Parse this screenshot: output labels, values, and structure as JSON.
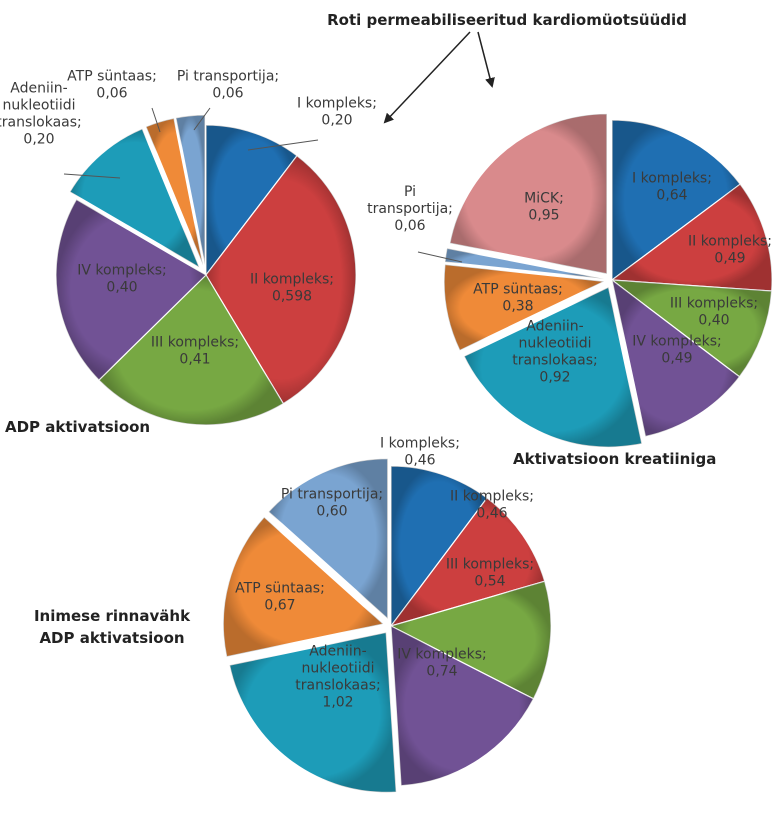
{
  "header": {
    "title": "Roti permeabiliseeritud kardiomüotsüüdid"
  },
  "chart_data": [
    {
      "type": "pie",
      "title": "ADP aktivatsioon",
      "categories": [
        "I kompleks",
        "II kompleks",
        "III kompleks",
        "IV kompleks",
        "Adeniin-nukleotiidi translokaas",
        "ATP süntaas",
        "Pi transportija"
      ],
      "values": [
        0.2,
        0.598,
        0.41,
        0.4,
        0.2,
        0.06,
        0.06
      ],
      "labels": [
        [
          "I kompleks;",
          "0,20"
        ],
        [
          "II kompleks;",
          "0,598"
        ],
        [
          "III kompleks;",
          "0,41"
        ],
        [
          "IV kompleks;",
          "0,40"
        ],
        [
          "Adeniin-",
          "nukleotiidi",
          "translokaas;",
          "0,20"
        ],
        [
          "ATP süntaas;",
          "0,06"
        ],
        [
          "Pi transportija;",
          "0,06"
        ]
      ],
      "colors": [
        "#1f6fb2",
        "#cc3f3f",
        "#77a843",
        "#715295",
        "#1d9cb8",
        "#ef8a38",
        "#7aa4d1"
      ]
    },
    {
      "type": "pie",
      "title": "Aktivatsioon kreatiiniga",
      "categories": [
        "I kompleks",
        "II kompleks",
        "III kompleks",
        "IV kompleks",
        "Adeniin-nukleotiidi translokaas",
        "ATP süntaas",
        "Pi transportija",
        "MiCK"
      ],
      "values": [
        0.64,
        0.49,
        0.4,
        0.49,
        0.92,
        0.38,
        0.06,
        0.95
      ],
      "labels": [
        [
          "I kompleks;",
          "0,64"
        ],
        [
          "II kompleks;",
          "0,49"
        ],
        [
          "III kompleks;",
          "0,40"
        ],
        [
          "IV kompleks;",
          "0,49"
        ],
        [
          "Adeniin-",
          "nukleotiidi",
          "translokaas;",
          "0,92"
        ],
        [
          "ATP süntaas;",
          "0,38"
        ],
        [
          "Pi",
          "transportija;",
          "0,06"
        ],
        [
          "MiCK;",
          "0,95"
        ]
      ],
      "colors": [
        "#1f6fb2",
        "#cc3f3f",
        "#77a843",
        "#715295",
        "#1d9cb8",
        "#ef8a38",
        "#7aa4d1",
        "#d98a8c"
      ]
    },
    {
      "type": "pie",
      "title": "Inimese rinnavähk ADP aktivatsioon",
      "title_lines": [
        "Inimese rinnavähk",
        "ADP aktivatsioon"
      ],
      "categories": [
        "I kompleks",
        "II kompleks",
        "III kompleks",
        "IV kompleks",
        "Adeniin-nukleotiidi translokaas",
        "ATP süntaas",
        "Pi transportija"
      ],
      "values": [
        0.46,
        0.46,
        0.54,
        0.74,
        1.02,
        0.67,
        0.6
      ],
      "labels": [
        [
          "I kompleks;",
          "0,46"
        ],
        [
          "II kompleks;",
          "0,46"
        ],
        [
          "III kompleks;",
          "0,54"
        ],
        [
          "IV kompleks;",
          "0,74"
        ],
        [
          "Adeniin-",
          "nukleotiidi",
          "translokaas;",
          "1,02"
        ],
        [
          "ATP süntaas;",
          "0,67"
        ],
        [
          "Pi transportija;",
          "0,60"
        ]
      ],
      "colors": [
        "#1f6fb2",
        "#cc3f3f",
        "#77a843",
        "#715295",
        "#1d9cb8",
        "#ef8a38",
        "#7aa4d1"
      ]
    }
  ]
}
